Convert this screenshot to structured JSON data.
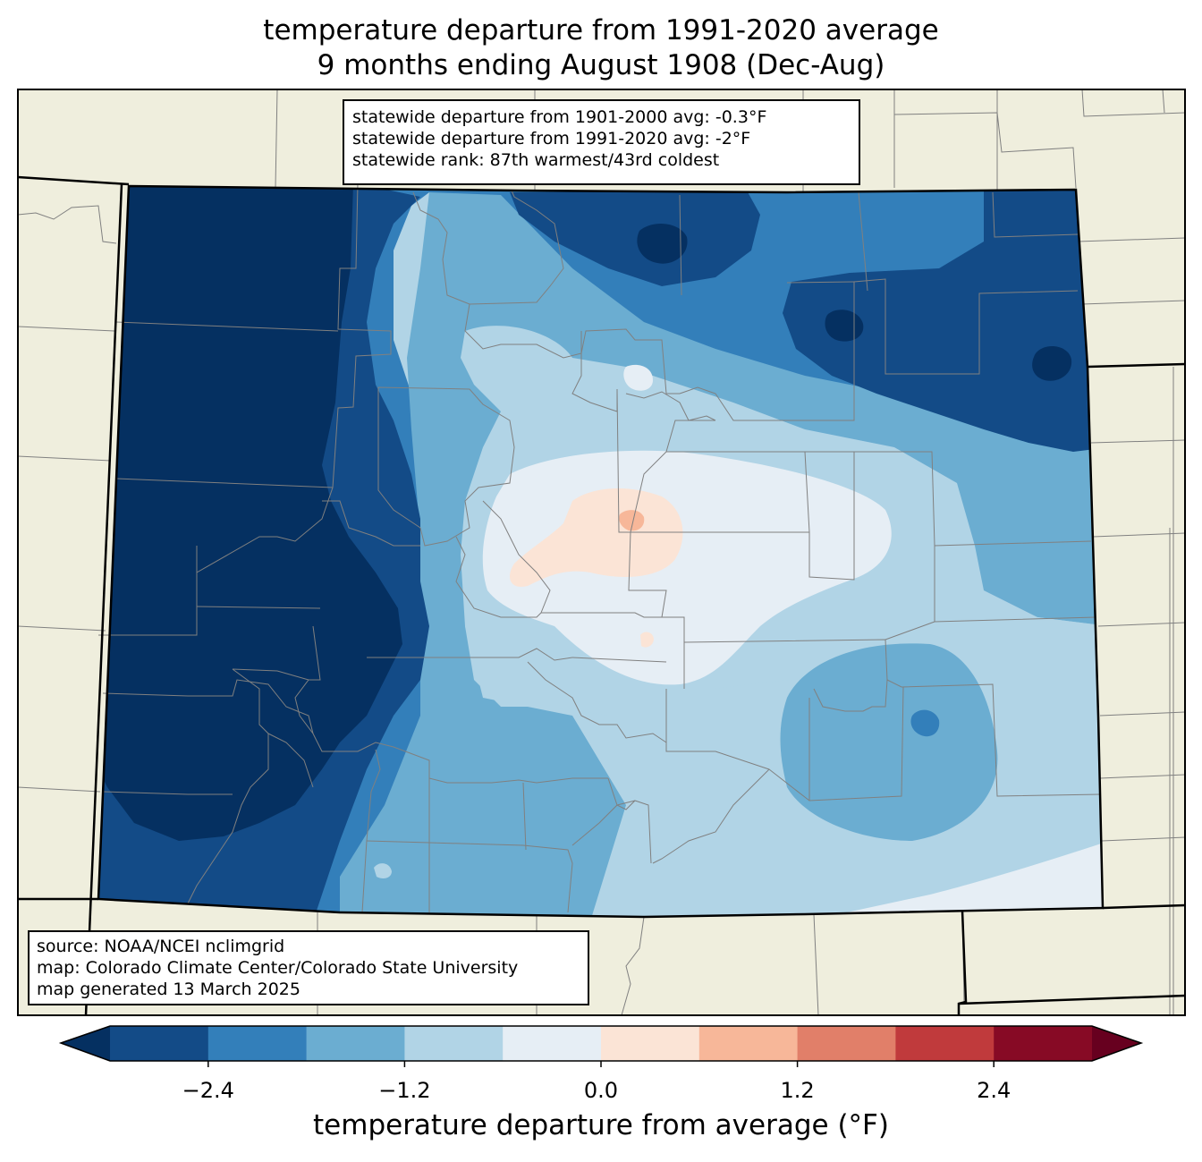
{
  "title": {
    "line1": "temperature departure from 1991-2020 average",
    "line2": "9 months ending August 1908 (Dec-Aug)"
  },
  "stats": {
    "line1": "statewide departure from 1901-2000 avg: -0.3°F",
    "line2": "statewide departure from 1991-2020 avg: -2°F",
    "line3": "statewide rank: 87th warmest/43rd coldest"
  },
  "source": {
    "line1": "source: NOAA/NCEI nclimgrid",
    "line2": "map: Colorado Climate Center/Colorado State University",
    "line3": "map generated 13 March 2025"
  },
  "colorbar": {
    "label": "temperature departure from average (°F)",
    "ticks": [
      "−2.4",
      "−1.2",
      "0.0",
      "1.2",
      "2.4"
    ],
    "bins": [
      {
        "range": [
          -3.0,
          -2.4
        ],
        "color": "#134b87"
      },
      {
        "range": [
          -2.4,
          -1.8
        ],
        "color": "#337fba"
      },
      {
        "range": [
          -1.8,
          -1.2
        ],
        "color": "#6badd1"
      },
      {
        "range": [
          -1.2,
          -0.6
        ],
        "color": "#b1d4e6"
      },
      {
        "range": [
          -0.6,
          0.0
        ],
        "color": "#e6eef5"
      },
      {
        "range": [
          0.0,
          0.6
        ],
        "color": "#fbe4d6"
      },
      {
        "range": [
          0.6,
          1.2
        ],
        "color": "#f7b799"
      },
      {
        "range": [
          1.2,
          1.8
        ],
        "color": "#e17f69"
      },
      {
        "range": [
          1.8,
          2.4
        ],
        "color": "#c03a3c"
      },
      {
        "range": [
          2.4,
          3.0
        ],
        "color": "#870a25"
      }
    ],
    "under_color": "#053061",
    "over_color": "#67001f"
  },
  "map": {
    "land_color": "#efeedd",
    "county_line_color": "#808080",
    "state_line_color": "#000000"
  }
}
